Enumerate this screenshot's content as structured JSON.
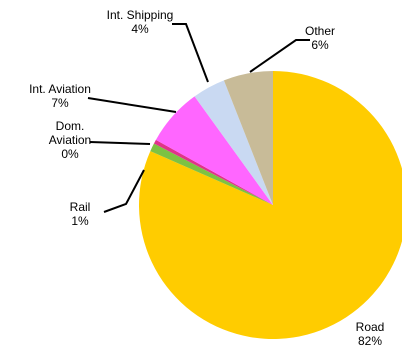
{
  "chart_data": {
    "type": "pie",
    "slices": [
      {
        "category": "Road",
        "label_lines": [
          "Road"
        ],
        "value": 82,
        "value_label": "82%",
        "color": "#FFCC00"
      },
      {
        "category": "Rail",
        "label_lines": [
          "Rail"
        ],
        "value": 1,
        "value_label": "1%",
        "color": "#7DC243"
      },
      {
        "category": "Dom. Aviation",
        "label_lines": [
          "Dom.",
          "Aviation"
        ],
        "value": 0.5,
        "value_label": "0%",
        "color": "#E0338A"
      },
      {
        "category": "Int. Aviation",
        "label_lines": [
          "Int. Aviation"
        ],
        "value": 7,
        "value_label": "7%",
        "color": "#FF66FF"
      },
      {
        "category": "Int. Shipping",
        "label_lines": [
          "Int. Shipping"
        ],
        "value": 4,
        "value_label": "4%",
        "color": "#C9D9F2"
      },
      {
        "category": "Other",
        "label_lines": [
          "Other"
        ],
        "value": 6,
        "value_label": "6%",
        "color": "#C8BB98"
      }
    ]
  }
}
